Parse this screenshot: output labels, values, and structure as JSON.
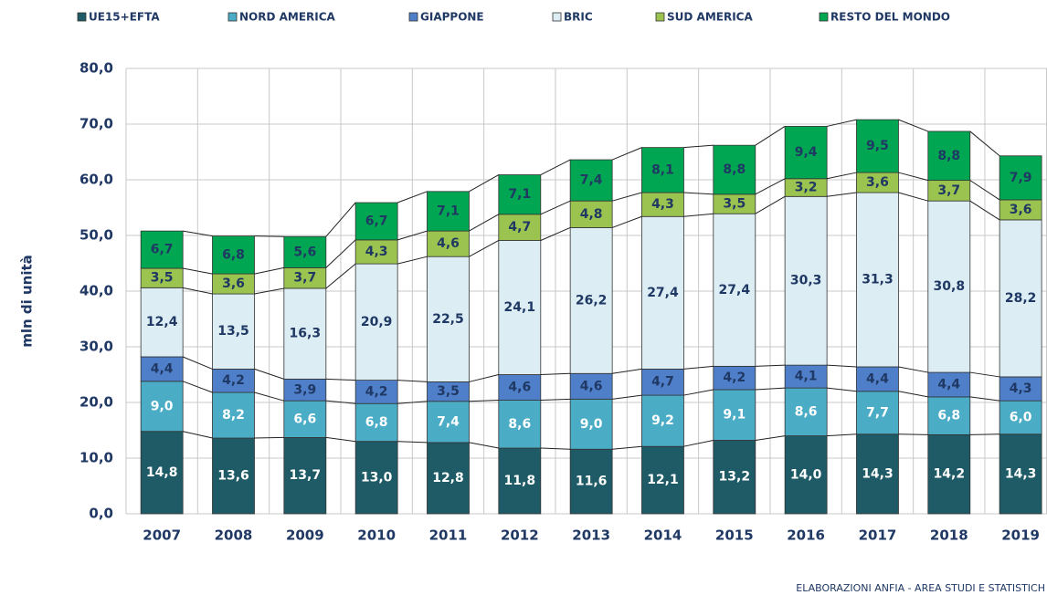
{
  "chart_data": {
    "type": "stacked_bar",
    "y_label": "mln di unità",
    "note": "ELABORAZIONI ANFIA - AREA STUDI E STATISTICH",
    "categories": [
      "2007",
      "2008",
      "2009",
      "2010",
      "2011",
      "2012",
      "2013",
      "2014",
      "2015",
      "2016",
      "2017",
      "2018",
      "2019"
    ],
    "ylim": [
      0,
      80
    ],
    "yticks": [
      {
        "value": 0,
        "label": "0,0"
      },
      {
        "value": 10,
        "label": "10,0"
      },
      {
        "value": 20,
        "label": "20,0"
      },
      {
        "value": 30,
        "label": "30,0"
      },
      {
        "value": 40,
        "label": "40,0"
      },
      {
        "value": 50,
        "label": "50,0"
      },
      {
        "value": 60,
        "label": "60,0"
      },
      {
        "value": 70,
        "label": "70,0"
      },
      {
        "value": 80,
        "label": "80,0"
      }
    ],
    "grid": true,
    "legend": "top",
    "series": [
      {
        "name": "UE15+EFTA",
        "color": "#1f5b66",
        "label_color": "#ffffff",
        "values": [
          14.8,
          13.6,
          13.7,
          13.0,
          12.8,
          11.8,
          11.6,
          12.1,
          13.2,
          14.0,
          14.3,
          14.2,
          14.3
        ],
        "value_labels": [
          "14,8",
          "13,6",
          "13,7",
          "13,0",
          "12,8",
          "11,8",
          "11,6",
          "12,1",
          "13,2",
          "14,0",
          "14,3",
          "14,2",
          "14,3"
        ]
      },
      {
        "name": "NORD AMERICA",
        "color": "#4bacc6",
        "label_color": "#ffffff",
        "values": [
          9.0,
          8.2,
          6.6,
          6.8,
          7.4,
          8.6,
          9.0,
          9.2,
          9.1,
          8.6,
          7.7,
          6.8,
          6.0
        ],
        "value_labels": [
          "9,0",
          "8,2",
          "6,6",
          "6,8",
          "7,4",
          "8,6",
          "9,0",
          "9,2",
          "9,1",
          "8,6",
          "7,7",
          "6,8",
          "6,0"
        ]
      },
      {
        "name": "GIAPPONE",
        "color": "#4f7fc8",
        "label_color": "#1f3864",
        "values": [
          4.4,
          4.2,
          3.9,
          4.2,
          3.5,
          4.6,
          4.6,
          4.7,
          4.2,
          4.1,
          4.4,
          4.4,
          4.3
        ],
        "value_labels": [
          "4,4",
          "4,2",
          "3,9",
          "4,2",
          "3,5",
          "4,6",
          "4,6",
          "4,7",
          "4,2",
          "4,1",
          "4,4",
          "4,4",
          "4,3"
        ]
      },
      {
        "name": "BRIC",
        "color": "#dcedf4",
        "label_color": "#1f3864",
        "values": [
          12.4,
          13.5,
          16.3,
          20.9,
          22.5,
          24.1,
          26.2,
          27.4,
          27.4,
          30.3,
          31.3,
          30.8,
          28.2
        ],
        "value_labels": [
          "12,4",
          "13,5",
          "16,3",
          "20,9",
          "22,5",
          "24,1",
          "26,2",
          "27,4",
          "27,4",
          "30,3",
          "31,3",
          "30,8",
          "28,2"
        ]
      },
      {
        "name": "SUD AMERICA",
        "color": "#9bc34f",
        "label_color": "#1f3864",
        "values": [
          3.5,
          3.6,
          3.7,
          4.3,
          4.6,
          4.7,
          4.8,
          4.3,
          3.5,
          3.2,
          3.6,
          3.7,
          3.6
        ],
        "value_labels": [
          "3,5",
          "3,6",
          "3,7",
          "4,3",
          "4,6",
          "4,7",
          "4,8",
          "4,3",
          "3,5",
          "3,2",
          "3,6",
          "3,7",
          "3,6"
        ]
      },
      {
        "name": "RESTO DEL MONDO",
        "color": "#00a651",
        "label_color": "#1f3864",
        "values": [
          6.7,
          6.8,
          5.6,
          6.7,
          7.1,
          7.1,
          7.4,
          8.1,
          8.8,
          9.4,
          9.5,
          8.8,
          7.9
        ],
        "value_labels": [
          "6,7",
          "6,8",
          "5,6",
          "6,7",
          "7,1",
          "7,1",
          "7,4",
          "8,1",
          "8,8",
          "9,4",
          "9,5",
          "8,8",
          "7,9"
        ]
      }
    ]
  }
}
